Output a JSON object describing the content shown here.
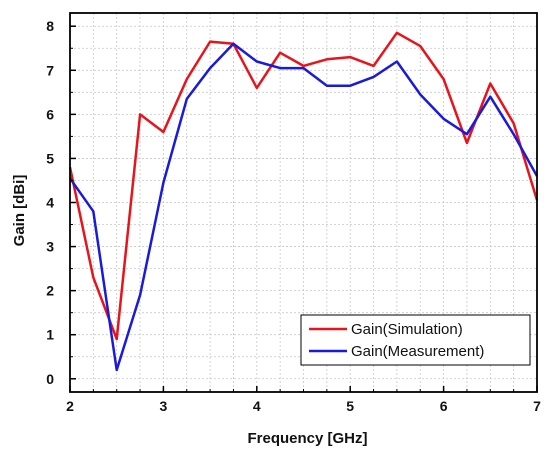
{
  "chart_data": {
    "type": "line",
    "xlabel": "Frequency   [GHz]",
    "ylabel": "Gain   [dBi]",
    "xlim": [
      2,
      7
    ],
    "ylim": [
      -0.3,
      8.3
    ],
    "xticks": [
      2,
      3,
      4,
      5,
      6,
      7
    ],
    "yticks": [
      0,
      1,
      2,
      3,
      4,
      5,
      6,
      7,
      8
    ],
    "grid": true,
    "legend_position": "bottom-right",
    "series": [
      {
        "name": "Gain(Simulation)",
        "color": "#e8141c",
        "x": [
          2,
          2.25,
          2.5,
          2.75,
          3,
          3.25,
          3.5,
          3.75,
          4,
          4.25,
          4.5,
          4.75,
          5,
          5.25,
          5.5,
          5.75,
          6,
          6.25,
          6.5,
          6.75,
          7
        ],
        "y": [
          4.8,
          2.3,
          0.9,
          6.0,
          5.6,
          6.8,
          7.65,
          7.6,
          6.6,
          7.4,
          7.1,
          7.25,
          7.3,
          7.1,
          7.85,
          7.55,
          6.8,
          5.35,
          6.7,
          5.8,
          4.05
        ]
      },
      {
        "name": "Gain(Measurement)",
        "color": "#1a1adc",
        "x": [
          2,
          2.25,
          2.5,
          2.75,
          3,
          3.25,
          3.5,
          3.75,
          4,
          4.25,
          4.5,
          4.75,
          5,
          5.25,
          5.5,
          5.75,
          6,
          6.25,
          6.5,
          6.75,
          7
        ],
        "y": [
          4.55,
          3.8,
          0.2,
          1.9,
          4.45,
          6.35,
          7.05,
          7.6,
          7.2,
          7.05,
          7.05,
          6.65,
          6.65,
          6.85,
          7.2,
          6.45,
          5.9,
          5.55,
          6.4,
          5.55,
          4.6
        ]
      }
    ]
  }
}
